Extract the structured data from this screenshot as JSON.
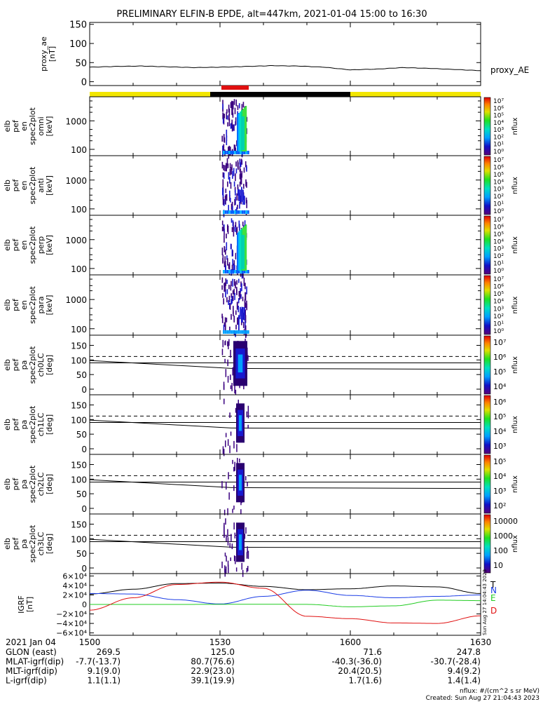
{
  "title": "PRELIMINARY ELFIN-B EPDE, alt=447km, 2021-01-04 15:00 to 16:30",
  "colors": {
    "bar_day": "#f2e600",
    "bar_night": "#000000",
    "bar_science": "#e01010",
    "proxy_line": "#000000",
    "igrf_T": "#000000",
    "igrf_N": "#1a3ce6",
    "igrf_E": "#22cc22",
    "igrf_D": "#e01010"
  },
  "proxy_ae": {
    "ylabel": [
      "proxy_ae",
      "[nT]"
    ],
    "legend": "proxy_AE",
    "yticks": [
      "150",
      "100",
      "50",
      "0"
    ],
    "ylim": [
      -10,
      155
    ]
  },
  "energy_panels": [
    {
      "ylabel": [
        "elb",
        "pef",
        "en",
        "spec2plot",
        "omni",
        "[keV]"
      ],
      "yticks": [
        "1000",
        "100"
      ],
      "colorbar_label": "nflux",
      "colorbar_ticks": [
        "10⁷",
        "10⁶",
        "10⁵",
        "10⁴",
        "10³",
        "10²",
        "10¹",
        "10⁰"
      ]
    },
    {
      "ylabel": [
        "elb",
        "pef",
        "en",
        "spec2plot",
        "anti",
        "[keV]"
      ],
      "yticks": [
        "1000",
        "100"
      ],
      "colorbar_label": "nflux",
      "colorbar_ticks": [
        "10⁷",
        "10⁶",
        "10⁵",
        "10⁴",
        "10³",
        "10²",
        "10¹",
        "10⁰"
      ]
    },
    {
      "ylabel": [
        "elb",
        "pef",
        "en",
        "spec2plot",
        "perp",
        "[keV]"
      ],
      "yticks": [
        "1000",
        "100"
      ],
      "colorbar_label": "nflux",
      "colorbar_ticks": [
        "10⁷",
        "10⁶",
        "10⁵",
        "10⁴",
        "10³",
        "10²",
        "10¹",
        "10⁰"
      ]
    },
    {
      "ylabel": [
        "elb",
        "pef",
        "en",
        "spec2plot",
        "para",
        "[keV]"
      ],
      "yticks": [
        "1000",
        "100"
      ],
      "colorbar_label": "nflux",
      "colorbar_ticks": [
        "10⁷",
        "10⁶",
        "10⁵",
        "10⁴",
        "10³",
        "10²",
        "10¹",
        "10⁰"
      ]
    }
  ],
  "pa_panels": [
    {
      "ylabel": [
        "elb",
        "pef",
        "pa",
        "spec2plot",
        "ch0LC",
        "[deg]"
      ],
      "yticks": [
        "150",
        "100",
        "50",
        "0"
      ],
      "colorbar_label": "nflux",
      "colorbar_ticks": [
        "10⁷",
        "10⁶",
        "10⁵",
        "10⁴"
      ]
    },
    {
      "ylabel": [
        "elb",
        "pef",
        "pa",
        "spec2plot",
        "ch1LC",
        "[deg]"
      ],
      "yticks": [
        "150",
        "100",
        "50",
        "0"
      ],
      "colorbar_label": "nflux",
      "colorbar_ticks": [
        "10⁶",
        "10⁵",
        "10⁴",
        "10³"
      ]
    },
    {
      "ylabel": [
        "elb",
        "pef",
        "pa",
        "spec2plot",
        "ch2LC",
        "[deg]"
      ],
      "yticks": [
        "150",
        "100",
        "50",
        "0"
      ],
      "colorbar_label": "nflux",
      "colorbar_ticks": [
        "10⁵",
        "10⁴",
        "10³",
        "10²"
      ]
    },
    {
      "ylabel": [
        "elb",
        "pef",
        "pa",
        "spec2plot",
        "ch3LC",
        "[deg]"
      ],
      "yticks": [
        "150",
        "100",
        "50",
        "0"
      ],
      "colorbar_label": "nflux",
      "colorbar_ticks": [
        "10000",
        "1000",
        "100",
        "10"
      ]
    }
  ],
  "igrf": {
    "ylabel": [
      "IGRF",
      "[nT]"
    ],
    "yticks": [
      "6×10⁴",
      "4×10⁴",
      "2×10⁴",
      "0",
      "−2×10⁴",
      "−4×10⁴",
      "−6×10⁴"
    ],
    "legend": [
      "T",
      "N",
      "E",
      "D"
    ],
    "sidenote": "Sun Aug 27 14:04:43 2023"
  },
  "chart_data": [
    {
      "type": "line",
      "ylabel": "proxy_ae [nT]",
      "ylim": [
        -10,
        155
      ],
      "x_minutes": [
        0,
        6,
        12,
        18,
        24,
        30,
        36,
        42,
        48,
        54,
        60,
        66,
        72,
        78,
        84,
        90
      ],
      "series": [
        {
          "name": "proxy_AE",
          "values": [
            38,
            40,
            41,
            39,
            37,
            38,
            40,
            42,
            41,
            38,
            31,
            33,
            37,
            35,
            32,
            29
          ]
        }
      ]
    },
    {
      "type": "heatmap",
      "ylabel": "elb pef en spec2plot omni [keV]",
      "ylim": [
        60,
        7000
      ],
      "x_minutes_range": [
        34,
        40
      ]
    },
    {
      "type": "line",
      "ylabel": "IGRF [nT]",
      "ylim": [
        -65000,
        65000
      ],
      "x_minutes": [
        0,
        10,
        20,
        30,
        40,
        50,
        60,
        70,
        80,
        90
      ],
      "series": [
        {
          "name": "T",
          "values": [
            22000,
            32000,
            44000,
            45000,
            38000,
            31000,
            33000,
            39000,
            37000,
            23000
          ]
        },
        {
          "name": "N",
          "values": [
            23000,
            22000,
            10000,
            1000,
            17000,
            30000,
            19000,
            14000,
            17000,
            20000
          ]
        },
        {
          "name": "E",
          "values": [
            0,
            0,
            0,
            200,
            500,
            100,
            -5000,
            -3000,
            9000,
            8000
          ]
        },
        {
          "name": "D",
          "values": [
            -12000,
            14000,
            42000,
            47000,
            34000,
            -25000,
            -30000,
            -39000,
            -40000,
            -24000
          ]
        }
      ]
    }
  ],
  "time_axis": {
    "header": "2021 Jan 04",
    "ticks": [
      "1500",
      "1530",
      "1600",
      "1630"
    ]
  },
  "ephemeris": {
    "rows": [
      {
        "label": "GLON (east)",
        "values": [
          "269.5",
          "125.0",
          "71.6",
          "247.8"
        ]
      },
      {
        "label": "MLAT-igrf(dip)",
        "values": [
          "-7.7(-13.7)",
          "80.7(76.6)",
          "-40.3(-36.0)",
          "-30.7(-28.4)"
        ]
      },
      {
        "label": "MLT-igrf(dip)",
        "values": [
          "9.1(9.0)",
          "22.9(23.0)",
          "20.4(20.5)",
          "9.4(9.2)"
        ]
      },
      {
        "label": "L-igrf(dip)",
        "values": [
          "1.1(1.1)",
          "39.1(19.9)",
          "1.7(1.6)",
          "1.4(1.4)"
        ]
      }
    ]
  },
  "footer": {
    "units": "nflux: #/(cm^2 s sr MeV)",
    "created": "Created: Sun Aug 27 21:04:43 2023"
  }
}
